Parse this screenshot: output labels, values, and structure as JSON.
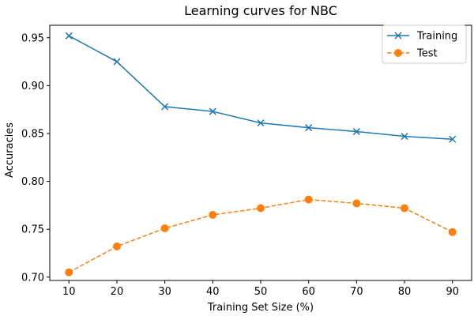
{
  "chart_data": {
    "type": "line",
    "title": "Learning curves for NBC",
    "xlabel": "Training Set Size (%)",
    "ylabel": "Accuracies",
    "x": [
      10,
      20,
      30,
      40,
      50,
      60,
      70,
      80,
      90
    ],
    "xticks": [
      "10",
      "20",
      "30",
      "40",
      "50",
      "60",
      "70",
      "80",
      "90"
    ],
    "yticks": [
      "0.70",
      "0.75",
      "0.80",
      "0.85",
      "0.90",
      "0.95"
    ],
    "ytick_values": [
      0.7,
      0.75,
      0.8,
      0.85,
      0.9,
      0.95
    ],
    "xlim": [
      6,
      94
    ],
    "ylim": [
      0.6965,
      0.963
    ],
    "grid": false,
    "legend_position": "top-right",
    "series": [
      {
        "name": "Training",
        "color": "#1f77b4",
        "marker": "x",
        "linestyle": "solid",
        "values": [
          0.952,
          0.925,
          0.878,
          0.873,
          0.861,
          0.856,
          0.852,
          0.847,
          0.844
        ]
      },
      {
        "name": "Test",
        "color": "#ff7f0e",
        "marker": "circle",
        "linestyle": "dashed",
        "values": [
          0.705,
          0.732,
          0.751,
          0.765,
          0.772,
          0.781,
          0.777,
          0.772,
          0.747
        ]
      }
    ]
  }
}
